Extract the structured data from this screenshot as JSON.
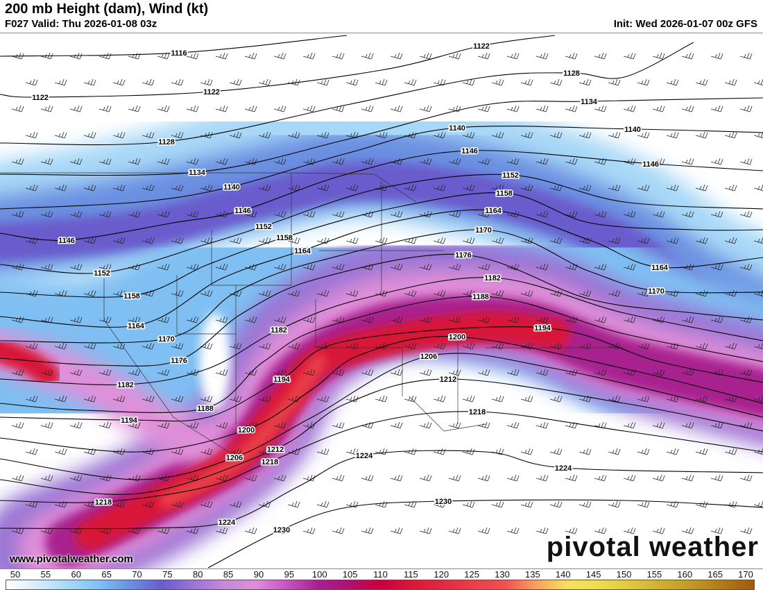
{
  "header": {
    "title": "200 mb Height (dam), Wind (kt)",
    "valid": "F027 Valid: Thu 2026-01-08 03z",
    "init": "Init: Wed 2026-01-07 00z GFS"
  },
  "branding": {
    "url": "www.pivotalweather.com",
    "logo": "pivotal weather"
  },
  "colorbar": {
    "unit": "kt",
    "levels": [
      50,
      55,
      60,
      65,
      70,
      75,
      80,
      85,
      90,
      95,
      100,
      105,
      110,
      115,
      120,
      125,
      130,
      135,
      140,
      145,
      150,
      155,
      160,
      165,
      170
    ],
    "colors": [
      "#ffffff",
      "#d6ecfb",
      "#a8d8f7",
      "#7fbff2",
      "#6a8fe0",
      "#6a5ccc",
      "#9a74d4",
      "#c48ad8",
      "#e08fd8",
      "#c455c0",
      "#a8208f",
      "#b01070",
      "#c8003c",
      "#d81838",
      "#e02a40",
      "#e84048",
      "#f05050",
      "#f8a060",
      "#f8e060",
      "#f0dc50",
      "#e0c840",
      "#d0b030",
      "#c09828",
      "#b07a18",
      "#a05a10"
    ]
  },
  "contour_labels": [
    "1116",
    "1122",
    "1122",
    "1122",
    "1128",
    "1128",
    "1134",
    "1134",
    "1140",
    "1140",
    "1140",
    "1146",
    "1146",
    "1146",
    "1146",
    "1152",
    "1152",
    "1152",
    "1158",
    "1158",
    "1158",
    "1164",
    "1164",
    "1164",
    "1164",
    "1170",
    "1170",
    "1170",
    "1176",
    "1176",
    "1182",
    "1182",
    "1182",
    "1188",
    "1188",
    "1194",
    "1194",
    "1194",
    "1200",
    "1200",
    "1206",
    "1206",
    "1212",
    "1212",
    "1218",
    "1218",
    "1218",
    "1224",
    "1224",
    "1224",
    "1230",
    "1230"
  ],
  "contour_values": [
    1116,
    1122,
    1128,
    1134,
    1140,
    1146,
    1152,
    1158,
    1164,
    1170,
    1176,
    1182,
    1188,
    1194,
    1200,
    1206,
    1212,
    1218,
    1224,
    1230
  ]
}
